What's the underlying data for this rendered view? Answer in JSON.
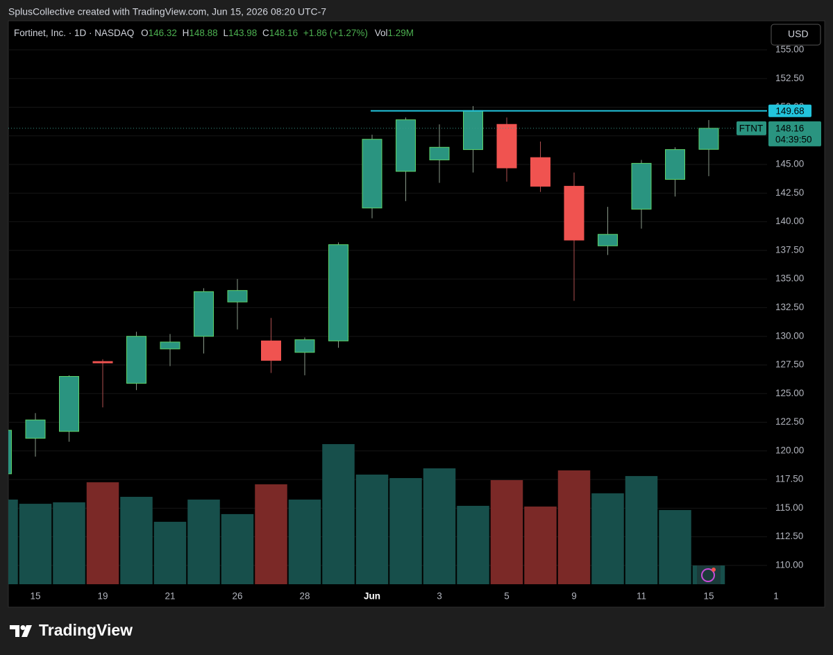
{
  "attribution": "SplusCollective created with TradingView.com, Jun 15, 2026 08:20 UTC-7",
  "brand": "TradingView",
  "chart_data": {
    "type": "candlestick",
    "title": "Fortinet, Inc. · 1D · NASDAQ",
    "legend_labels": {
      "open": "O",
      "high": "H",
      "low": "L",
      "close": "C",
      "volume": "Vol"
    },
    "change": "+1.86 (+1.27%)",
    "currency": "USD",
    "symbol_tag": "FTNT",
    "countdown": "04:39:50",
    "categories": [
      null,
      "15",
      null,
      "19",
      null,
      "21",
      null,
      "26",
      null,
      "28",
      null,
      "Jun",
      null,
      "3",
      null,
      "5",
      null,
      "9",
      null,
      "11",
      null,
      "15",
      null,
      "1"
    ],
    "open": [
      118.0,
      121.1,
      121.7,
      127.8,
      125.9,
      128.9,
      130.0,
      133.0,
      129.6,
      128.6,
      129.6,
      141.2,
      144.4,
      145.4,
      146.3,
      148.5,
      145.6,
      143.1,
      137.9,
      141.1,
      143.7,
      146.32,
      null,
      null
    ],
    "high": [
      121.8,
      123.3,
      126.6,
      128.0,
      130.4,
      130.2,
      134.2,
      135.0,
      131.6,
      129.9,
      138.2,
      147.6,
      149.1,
      148.5,
      150.1,
      149.1,
      147.0,
      144.3,
      141.3,
      145.4,
      146.5,
      148.88,
      null,
      null
    ],
    "low": [
      118.0,
      119.5,
      120.8,
      123.8,
      125.3,
      127.4,
      128.5,
      130.6,
      126.8,
      126.6,
      129.0,
      140.3,
      141.8,
      143.4,
      144.3,
      143.5,
      142.6,
      133.1,
      137.1,
      139.4,
      142.2,
      143.98,
      null,
      null
    ],
    "close": [
      121.8,
      122.7,
      126.5,
      127.7,
      130.0,
      129.5,
      133.9,
      134.0,
      127.9,
      129.7,
      138.0,
      147.2,
      148.9,
      146.5,
      149.7,
      144.7,
      143.1,
      138.4,
      138.9,
      145.1,
      146.3,
      148.16,
      null,
      null
    ],
    "volume": [
      5.83,
      5.54,
      5.64,
      7.02,
      6.02,
      4.3,
      5.83,
      4.83,
      6.88,
      5.83,
      9.65,
      7.55,
      7.31,
      7.98,
      5.4,
      7.17,
      5.35,
      7.84,
      6.26,
      7.45,
      5.11,
      1.29,
      null,
      null
    ],
    "volume_value_labels": [
      null,
      null,
      null,
      null,
      null,
      null,
      null,
      null,
      null,
      null,
      null,
      null,
      null,
      null,
      null,
      null,
      null,
      null,
      null,
      null,
      null,
      "1.29M",
      null,
      null
    ],
    "ylim": [
      108.36,
      157.54
    ],
    "y2lim": [
      0,
      38.8
    ],
    "yticks": [
      {
        "value": 110,
        "label": "110.00"
      },
      {
        "value": 112.5,
        "label": "112.50"
      },
      {
        "value": 115,
        "label": "115.00"
      },
      {
        "value": 117.5,
        "label": "117.50"
      },
      {
        "value": 120,
        "label": "120.00"
      },
      {
        "value": 122.5,
        "label": "122.50"
      },
      {
        "value": 125,
        "label": "125.00"
      },
      {
        "value": 127.5,
        "label": "127.50"
      },
      {
        "value": 130,
        "label": "130.00"
      },
      {
        "value": 132.5,
        "label": "132.50"
      },
      {
        "value": 135,
        "label": "135.00"
      },
      {
        "value": 137.5,
        "label": "137.50"
      },
      {
        "value": 140,
        "label": "140.00"
      },
      {
        "value": 142.5,
        "label": "142.50"
      },
      {
        "value": 145,
        "label": "145.00"
      },
      {
        "value": 147.5,
        "label": "147.50"
      },
      {
        "value": 150,
        "label": "150.00"
      },
      {
        "value": 152.5,
        "label": "152.50"
      },
      {
        "value": 155,
        "label": "155.00"
      }
    ],
    "hline": {
      "value": 149.68,
      "color": "#22c4dc"
    },
    "grid": true,
    "colors": {
      "up": "#2a9480",
      "up_border": "#5fd36a",
      "down": "#f05350",
      "volume_up": "#174f4b",
      "volume_down": "#7b2927"
    }
  }
}
